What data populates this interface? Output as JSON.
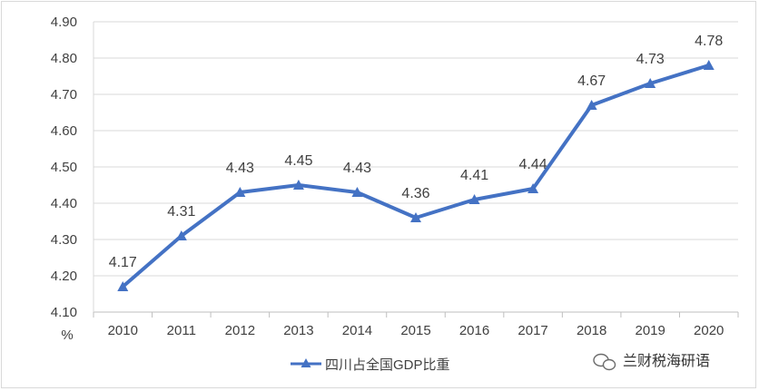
{
  "chart_data": {
    "type": "line",
    "title": "",
    "xlabel": "",
    "ylabel": "%",
    "categories": [
      "2010",
      "2011",
      "2012",
      "2013",
      "2014",
      "2015",
      "2016",
      "2017",
      "2018",
      "2019",
      "2020"
    ],
    "series": [
      {
        "name": "四川占全国GDP比重",
        "values": [
          4.17,
          4.31,
          4.43,
          4.45,
          4.43,
          4.36,
          4.41,
          4.44,
          4.67,
          4.73,
          4.78
        ],
        "labels": [
          "4.17",
          "4.31",
          "4.43",
          "4.45",
          "4.43",
          "4.36",
          "4.41",
          "4.44",
          "4.67",
          "4.73",
          "4.78"
        ],
        "color": "#4472c4",
        "marker": "triangle"
      }
    ],
    "y_ticks": [
      "4.10",
      "4.20",
      "4.30",
      "4.40",
      "4.50",
      "4.60",
      "4.70",
      "4.80",
      "4.90"
    ],
    "ylim": [
      4.1,
      4.9
    ],
    "grid": true,
    "legend": "bottom-center"
  },
  "watermark": {
    "text": "兰财税海研语",
    "icon": "wechat-icon"
  }
}
